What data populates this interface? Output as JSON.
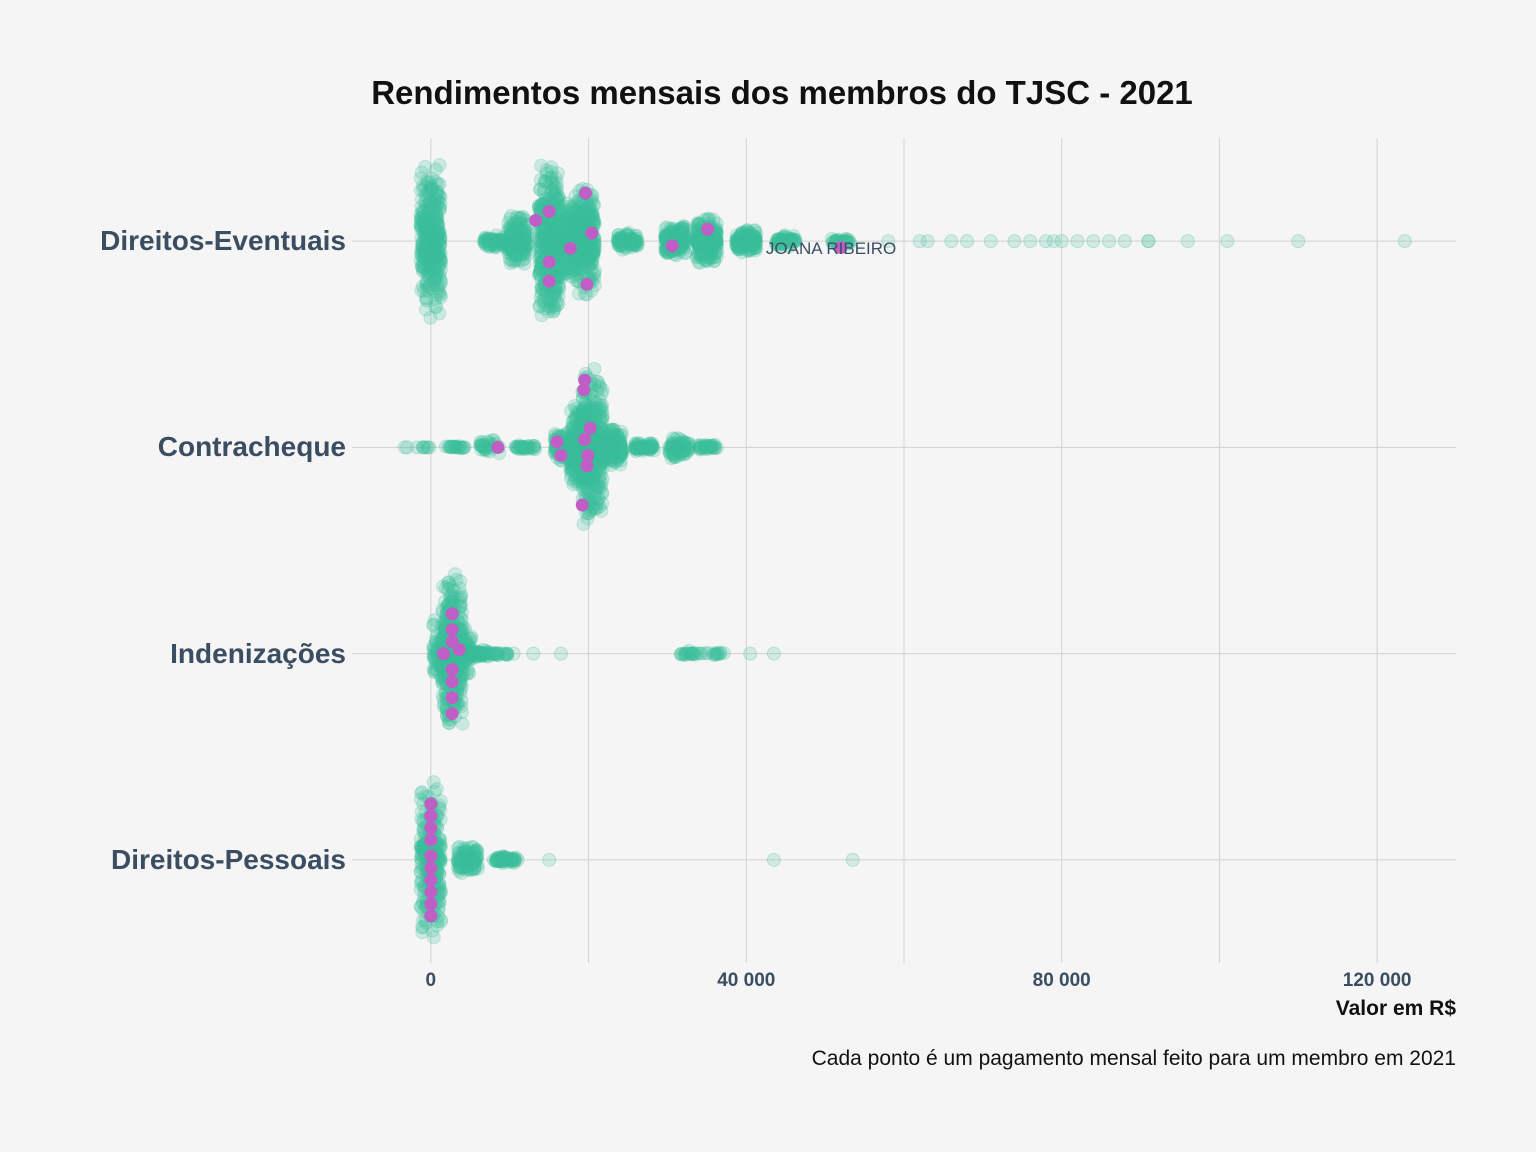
{
  "chart_data": {
    "type": "scatter",
    "title": "Rendimentos mensais dos membros do TJSC - 2021",
    "xlabel": "Valor em R$",
    "caption": "Cada ponto é um pagamento mensal feito para um membro em 2021",
    "xlim": [
      -10000,
      130000
    ],
    "x_ticks": [
      0,
      40000,
      80000,
      120000
    ],
    "x_tick_labels": [
      "0",
      "40 000",
      "80 000",
      "120 000"
    ],
    "grid": true,
    "categories": [
      "Direitos-Eventuais",
      "Contracheque",
      "Indenizações",
      "Direitos-Pessoais"
    ],
    "colors": {
      "background": "#f5f5f5",
      "points": "#3bbf9a",
      "highlight": "#bf5fc6",
      "grid": "#d2d2d2",
      "label": "#3a4d61"
    },
    "annotation": {
      "text": "JOANA RIBEIRO",
      "x": 52000,
      "category": "Direitos-Eventuais"
    },
    "series": [
      {
        "category": "Direitos-Eventuais",
        "clusters": [
          {
            "x": 0,
            "n": 320,
            "spread": 1.0
          },
          {
            "x": 8000,
            "n": 60,
            "spread": 0.1
          },
          {
            "x": 11000,
            "n": 160,
            "spread": 0.35
          },
          {
            "x": 15000,
            "n": 380,
            "spread": 1.0
          },
          {
            "x": 17500,
            "n": 180,
            "spread": 0.55
          },
          {
            "x": 19500,
            "n": 300,
            "spread": 0.72
          },
          {
            "x": 25000,
            "n": 80,
            "spread": 0.12
          },
          {
            "x": 31000,
            "n": 180,
            "spread": 0.2
          },
          {
            "x": 35000,
            "n": 260,
            "spread": 0.3
          },
          {
            "x": 40000,
            "n": 140,
            "spread": 0.15
          },
          {
            "x": 45000,
            "n": 60,
            "spread": 0.08
          },
          {
            "x": 52000,
            "n": 30,
            "spread": 0.04
          }
        ],
        "outliers": [
          58000,
          62000,
          63000,
          66000,
          68000,
          71000,
          74000,
          76000,
          78000,
          79000,
          80000,
          82000,
          84000,
          86000,
          88000,
          91000,
          91000,
          96000,
          101000,
          110000,
          123500
        ],
        "highlighted": [
          {
            "x": 13300,
            "rel": -0.26
          },
          {
            "x": 15000,
            "rel": -0.37
          },
          {
            "x": 15000,
            "rel": 0.26
          },
          {
            "x": 15000,
            "rel": 0.5
          },
          {
            "x": 17700,
            "rel": 0.09
          },
          {
            "x": 19600,
            "rel": -0.6
          },
          {
            "x": 19800,
            "rel": 0.54
          },
          {
            "x": 20400,
            "rel": -0.1
          },
          {
            "x": 30600,
            "rel": 0.06
          },
          {
            "x": 35100,
            "rel": -0.15
          },
          {
            "x": 52000,
            "rel": 0.08
          }
        ]
      },
      {
        "category": "Contracheque",
        "clusters": [
          {
            "x": -3000,
            "n": 2,
            "spread": 0.0
          },
          {
            "x": 0,
            "n": 6,
            "spread": 0.01
          },
          {
            "x": 3000,
            "n": 20,
            "spread": 0.02
          },
          {
            "x": 7500,
            "n": 30,
            "spread": 0.12
          },
          {
            "x": 12000,
            "n": 30,
            "spread": 0.03
          },
          {
            "x": 17000,
            "n": 120,
            "spread": 0.2
          },
          {
            "x": 19000,
            "n": 300,
            "spread": 0.55
          },
          {
            "x": 20500,
            "n": 340,
            "spread": 1.0
          },
          {
            "x": 23000,
            "n": 180,
            "spread": 0.25
          },
          {
            "x": 27000,
            "n": 60,
            "spread": 0.06
          },
          {
            "x": 31500,
            "n": 80,
            "spread": 0.15
          },
          {
            "x": 35000,
            "n": 30,
            "spread": 0.05
          }
        ],
        "outliers": [
          -3000,
          36000
        ],
        "highlighted": [
          {
            "x": 8500,
            "rel": 0.0
          },
          {
            "x": 16000,
            "rel": -0.07
          },
          {
            "x": 16500,
            "rel": 0.1
          },
          {
            "x": 19200,
            "rel": 0.72
          },
          {
            "x": 19400,
            "rel": -0.72
          },
          {
            "x": 19500,
            "rel": -0.84
          },
          {
            "x": 19500,
            "rel": -0.1
          },
          {
            "x": 19800,
            "rel": 0.23
          },
          {
            "x": 19900,
            "rel": 0.1
          },
          {
            "x": 20200,
            "rel": -0.24
          }
        ]
      },
      {
        "category": "Indenizações",
        "clusters": [
          {
            "x": 2700,
            "n": 300,
            "spread": 1.0
          },
          {
            "x": 1600,
            "n": 120,
            "spread": 0.5
          },
          {
            "x": 3900,
            "n": 100,
            "spread": 0.4
          },
          {
            "x": 6000,
            "n": 60,
            "spread": 0.06
          },
          {
            "x": 8500,
            "n": 20,
            "spread": 0.03
          },
          {
            "x": 33000,
            "n": 20,
            "spread": 0.04
          },
          {
            "x": 36000,
            "n": 12,
            "spread": 0.03
          }
        ],
        "outliers": [
          10500,
          13000,
          16500,
          40500,
          43500
        ],
        "highlighted": [
          {
            "x": 1600,
            "rel": 0.0
          },
          {
            "x": 2700,
            "rel": -0.5
          },
          {
            "x": 2700,
            "rel": -0.3
          },
          {
            "x": 2700,
            "rel": -0.15
          },
          {
            "x": 2700,
            "rel": 0.2
          },
          {
            "x": 2700,
            "rel": 0.35
          },
          {
            "x": 2700,
            "rel": 0.55
          },
          {
            "x": 2700,
            "rel": 0.75
          },
          {
            "x": 3600,
            "rel": -0.05
          }
        ]
      },
      {
        "category": "Direitos-Pessoais",
        "clusters": [
          {
            "x": 0,
            "n": 260,
            "spread": 1.0
          },
          {
            "x": 4700,
            "n": 110,
            "spread": 0.18
          },
          {
            "x": 9500,
            "n": 50,
            "spread": 0.05
          }
        ],
        "outliers": [
          8000,
          11000,
          15000,
          43500,
          53500
        ],
        "highlighted": [
          {
            "x": 0,
            "rel": -0.7
          },
          {
            "x": 0,
            "rel": -0.55
          },
          {
            "x": 0,
            "rel": -0.4
          },
          {
            "x": 0,
            "rel": -0.25
          },
          {
            "x": 0,
            "rel": -0.05
          },
          {
            "x": 0,
            "rel": 0.1
          },
          {
            "x": 0,
            "rel": 0.25
          },
          {
            "x": 0,
            "rel": 0.4
          },
          {
            "x": 0,
            "rel": 0.55
          },
          {
            "x": 0,
            "rel": 0.7
          }
        ]
      }
    ]
  }
}
